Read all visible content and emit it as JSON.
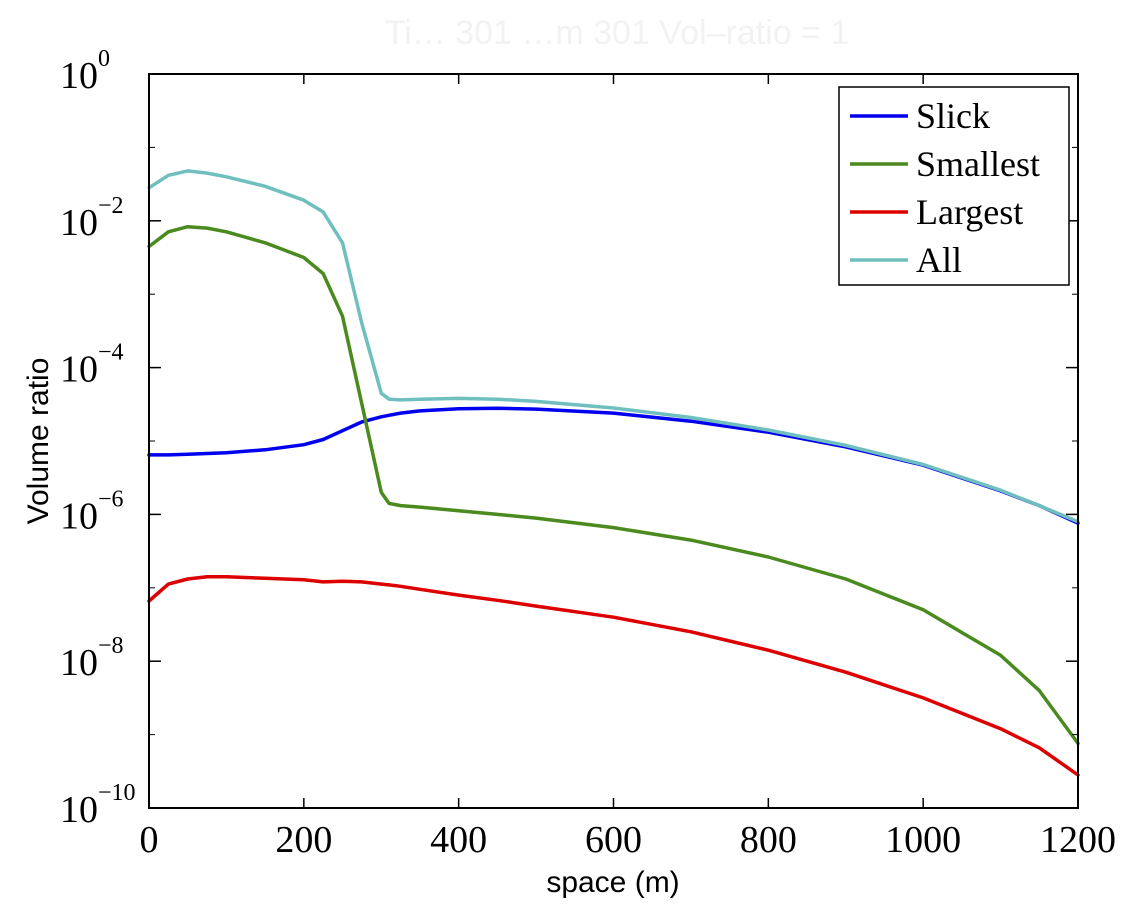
{
  "chart_data": {
    "type": "line",
    "title": "Ti… 301 …m 301 Vol–ratio = 1",
    "xlabel": "space (m)",
    "ylabel": "Volume ratio",
    "xlim": [
      0,
      1200
    ],
    "ylim_log10": [
      -10,
      0
    ],
    "y_scale": "log",
    "x_ticks": [
      0,
      200,
      400,
      600,
      800,
      1000,
      1200
    ],
    "x_tick_labels": [
      "0",
      "200",
      "400",
      "600",
      "800",
      "1000",
      "1200"
    ],
    "y_ticks_exp": [
      0,
      -2,
      -4,
      -6,
      -8,
      -10
    ],
    "y_tick_base": "10",
    "y_tick_exponents": [
      "0",
      "−2",
      "−4",
      "−6",
      "−8",
      "−10"
    ],
    "grid": false,
    "legend_placement": "top-right",
    "x": [
      0,
      25,
      50,
      75,
      100,
      150,
      200,
      225,
      250,
      275,
      300,
      310,
      325,
      350,
      400,
      450,
      500,
      600,
      700,
      800,
      900,
      1000,
      1100,
      1150,
      1200
    ],
    "series": [
      {
        "name": "Slick",
        "color": "#0000ee",
        "log10_values": [
          -5.19,
          -5.19,
          -5.18,
          -5.17,
          -5.16,
          -5.12,
          -5.05,
          -4.98,
          -4.86,
          -4.74,
          -4.67,
          -4.65,
          -4.62,
          -4.59,
          -4.56,
          -4.555,
          -4.565,
          -4.62,
          -4.73,
          -4.88,
          -5.08,
          -5.33,
          -5.68,
          -5.88,
          -6.12
        ]
      },
      {
        "name": "Smallest",
        "color": "#4a8a1e",
        "log10_values": [
          -2.35,
          -2.15,
          -2.08,
          -2.1,
          -2.15,
          -2.3,
          -2.5,
          -2.72,
          -3.3,
          -4.5,
          -5.7,
          -5.85,
          -5.88,
          -5.9,
          -5.95,
          -6.0,
          -6.05,
          -6.18,
          -6.35,
          -6.58,
          -6.88,
          -7.3,
          -7.92,
          -8.4,
          -9.12
        ]
      },
      {
        "name": "Largest",
        "color": "#dd0000",
        "log10_values": [
          -7.18,
          -6.95,
          -6.88,
          -6.85,
          -6.85,
          -6.87,
          -6.89,
          -6.92,
          -6.91,
          -6.92,
          -6.95,
          -6.96,
          -6.98,
          -7.02,
          -7.1,
          -7.17,
          -7.25,
          -7.4,
          -7.6,
          -7.85,
          -8.15,
          -8.5,
          -8.92,
          -9.18,
          -9.55
        ]
      },
      {
        "name": "All",
        "color": "#6fbfbf",
        "log10_values": [
          -1.55,
          -1.38,
          -1.32,
          -1.35,
          -1.4,
          -1.53,
          -1.72,
          -1.88,
          -2.3,
          -3.4,
          -4.35,
          -4.43,
          -4.44,
          -4.43,
          -4.42,
          -4.43,
          -4.46,
          -4.55,
          -4.68,
          -4.85,
          -5.06,
          -5.32,
          -5.67,
          -5.88,
          -6.1
        ]
      }
    ]
  }
}
